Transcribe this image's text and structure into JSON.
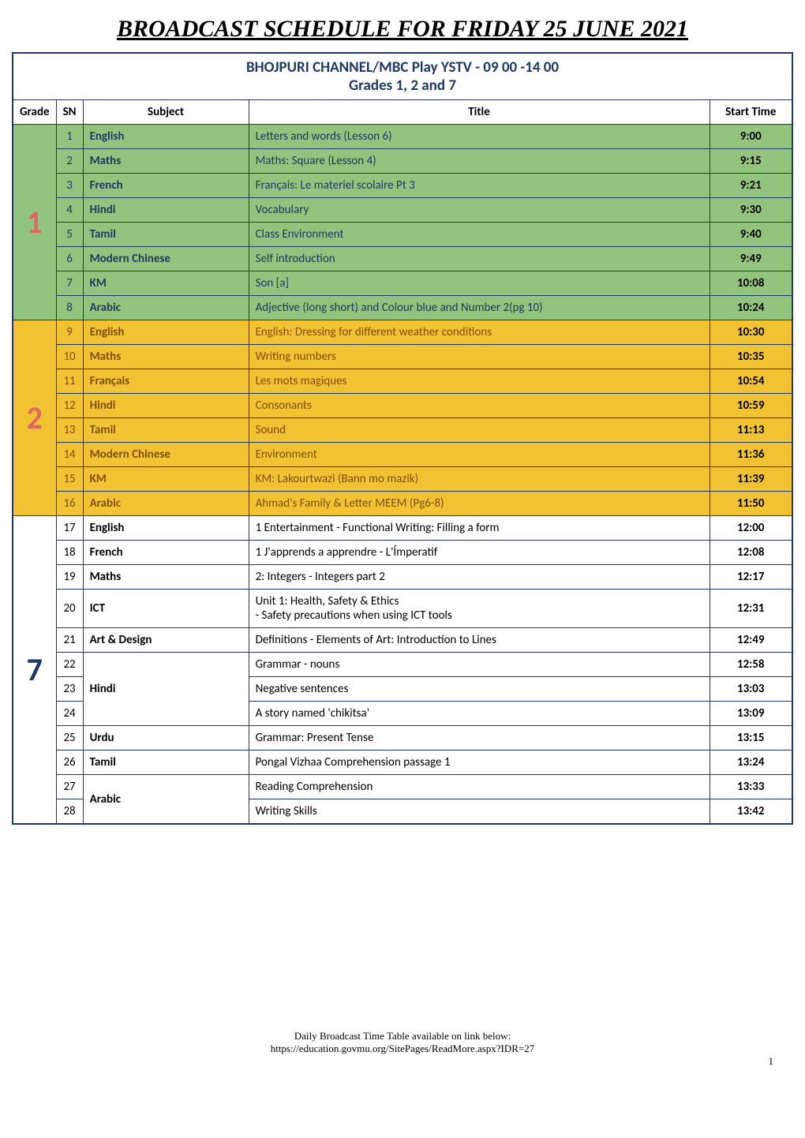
{
  "pageTitle": "BROADCAST SCHEDULE FOR FRIDAY 25 JUNE 2021",
  "channelHeader": "BHOJPURI CHANNEL/MBC Play YSTV - 09 00 -14 00",
  "gradesHeader": "Grades 1, 2 and 7",
  "columns": {
    "grade": "Grade",
    "sn": "SN",
    "subject": "Subject",
    "title": "Title",
    "startTime": "Start Time"
  },
  "gradeBlocks": [
    {
      "grade": "1",
      "gradeColor": "#e06666",
      "bgColor": "#93c47d",
      "textColor": "#1f3864",
      "rows": [
        {
          "sn": "1",
          "subject": "English",
          "title": "Letters and words (Lesson 6)",
          "time": "9:00"
        },
        {
          "sn": "2",
          "subject": "Maths",
          "title": "Maths: Square (Lesson 4)",
          "time": "9:15"
        },
        {
          "sn": "3",
          "subject": "French",
          "title": "Français: Le materiel scolaire Pt 3",
          "time": "9:21"
        },
        {
          "sn": "4",
          "subject": "Hindi",
          "title": "Vocabulary",
          "time": "9:30"
        },
        {
          "sn": "5",
          "subject": "Tamil",
          "title": "Class Environment",
          "time": "9:40"
        },
        {
          "sn": "6",
          "subject": "Modern Chinese",
          "title": "Self introduction",
          "time": "9:49"
        },
        {
          "sn": "7",
          "subject": "KM",
          "title": "Son [a]",
          "time": "10:08"
        },
        {
          "sn": "8",
          "subject": "Arabic",
          "title": "Adjective (long short) and Colour blue and  Number 2(pg 10)",
          "time": "10:24"
        }
      ]
    },
    {
      "grade": "2",
      "gradeColor": "#e06666",
      "bgColor": "#f1c232",
      "textColor": "#7f4f00",
      "rows": [
        {
          "sn": "9",
          "subject": "English",
          "title": "English: Dressing for different weather conditions",
          "time": "10:30"
        },
        {
          "sn": "10",
          "subject": "Maths",
          "title": "Writing numbers",
          "time": "10:35"
        },
        {
          "sn": "11",
          "subject": "Français",
          "title": " Les mots magiques",
          "time": "10:54"
        },
        {
          "sn": "12",
          "subject": "Hindi",
          "title": "Consonants",
          "time": "10:59"
        },
        {
          "sn": "13",
          "subject": "Tamil",
          "title": "Sound",
          "time": "11:13"
        },
        {
          "sn": "14",
          "subject": "Modern Chinese",
          "title": "Environment",
          "time": "11:36"
        },
        {
          "sn": "15",
          "subject": "KM",
          "title": "KM: Lakourtwazi (Bann mo mazik)",
          "time": "11:39"
        },
        {
          "sn": "16",
          "subject": "Arabic",
          "title": "Ahmad's Family & Letter MEEM (Pg6-8)",
          "time": "11:50"
        }
      ]
    },
    {
      "grade": "7",
      "gradeColor": "#1f3864",
      "bgColor": "#ffffff",
      "textColor": "#000000",
      "rows": [
        {
          "sn": "17",
          "subject": "English",
          "title": "1 Entertainment  -  Functional Writing: Filling a form",
          "time": "12:00",
          "subjectRowspan": 1
        },
        {
          "sn": "18",
          "subject": "French",
          "title": "1 J'apprends a apprendre  -  L'Ímperatif",
          "time": "12:08",
          "subjectRowspan": 1
        },
        {
          "sn": "19",
          "subject": "Maths",
          "title": "2: Integers  -  Integers part 2",
          "time": "12:17",
          "subjectRowspan": 1
        },
        {
          "sn": "20",
          "subject": "ICT",
          "title": "Unit 1:  Health, Safety & Ethics\n- Safety precautions when using ICT tools",
          "time": "12:31",
          "subjectRowspan": 1
        },
        {
          "sn": "21",
          "subject": "Art & Design",
          "title": "Definitions - Elements of Art: Introduction to Lines",
          "time": "12:49",
          "subjectRowspan": 1
        },
        {
          "sn": "22",
          "subject": "Hindi",
          "title": "Grammar - nouns",
          "time": "12:58",
          "subjectRowspan": 3,
          "subjectStart": true
        },
        {
          "sn": "23",
          "subject": "",
          "title": "Negative sentences",
          "time": "13:03",
          "subjectRowspan": 0
        },
        {
          "sn": "24",
          "subject": "",
          "title": "A story named 'chikitsa'",
          "time": "13:09",
          "subjectRowspan": 0
        },
        {
          "sn": "25",
          "subject": "Urdu",
          "title": "Grammar: Present Tense",
          "time": "13:15",
          "subjectRowspan": 1
        },
        {
          "sn": "26",
          "subject": "Tamil",
          "title": "Pongal Vizhaa Comprehension passage 1",
          "time": "13:24",
          "subjectRowspan": 1
        },
        {
          "sn": "27",
          "subject": "Arabic",
          "title": "Reading Comprehension",
          "time": "13:33",
          "subjectRowspan": 2,
          "subjectStart": true
        },
        {
          "sn": "28",
          "subject": "",
          "title": "Writing Skills",
          "time": "13:42",
          "subjectRowspan": 0
        }
      ]
    }
  ],
  "footer": {
    "line1": "Daily Broadcast Time Table available on link below:",
    "line2": "https://education.govmu.org/SitePages/ReadMore.aspx?IDR=27",
    "pageNum": "1"
  },
  "colors": {
    "border": "#1f3864",
    "headerText": "#1f3864"
  }
}
